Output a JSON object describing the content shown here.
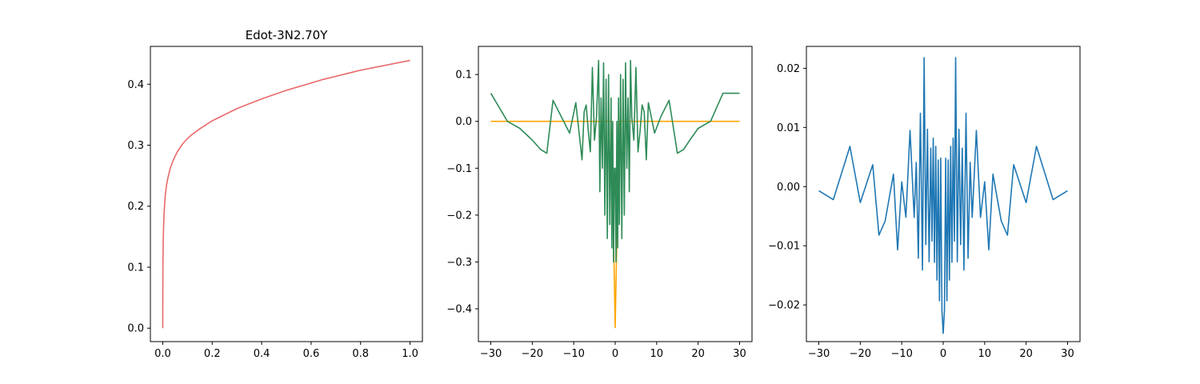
{
  "figure": {
    "background": "#ffffff"
  },
  "chart_data": [
    {
      "type": "line",
      "title": "Edot-3N2.70Y",
      "xlabel": "",
      "ylabel": "",
      "xlim": [
        -0.05,
        1.05
      ],
      "ylim": [
        -0.022,
        0.462
      ],
      "x_ticks": [
        0.0,
        0.2,
        0.4,
        0.6,
        0.8,
        1.0
      ],
      "x_tick_labels": [
        "0.0",
        "0.2",
        "0.4",
        "0.6",
        "0.8",
        "1.0"
      ],
      "y_ticks": [
        0.0,
        0.1,
        0.2,
        0.3,
        0.4
      ],
      "y_tick_labels": [
        "0.0",
        "0.1",
        "0.2",
        "0.3",
        "0.4"
      ],
      "grid": false,
      "series": [
        {
          "color": "#e8696b",
          "x": [
            0,
            0.0005,
            0.001,
            0.002,
            0.003,
            0.005,
            0.0075,
            0.01,
            0.015,
            0.02,
            0.03,
            0.04,
            0.05,
            0.06,
            0.08,
            0.1,
            0.12,
            0.15,
            0.2,
            0.25,
            0.3,
            0.35,
            0.4,
            0.45,
            0.5,
            0.55,
            0.6,
            0.65,
            0.7,
            0.75,
            0.8,
            0.85,
            0.9,
            0.95,
            1.0
          ],
          "y": [
            0,
            0.092,
            0.115,
            0.143,
            0.161,
            0.185,
            0.203,
            0.217,
            0.234,
            0.245,
            0.262,
            0.273,
            0.282,
            0.29,
            0.302,
            0.311,
            0.318,
            0.327,
            0.34,
            0.35,
            0.36,
            0.368,
            0.376,
            0.383,
            0.39,
            0.396,
            0.402,
            0.408,
            0.413,
            0.418,
            0.423,
            0.427,
            0.431,
            0.435,
            0.439
          ]
        }
      ]
    },
    {
      "type": "line",
      "title": "",
      "xlabel": "",
      "ylabel": "",
      "xlim": [
        -33,
        33
      ],
      "ylim": [
        -0.47,
        0.16
      ],
      "x_ticks": [
        -30,
        -20,
        -10,
        0,
        10,
        20,
        30
      ],
      "x_tick_labels": [
        "−30",
        "−20",
        "−10",
        "0",
        "10",
        "20",
        "30"
      ],
      "y_ticks": [
        0.1,
        0.0,
        -0.1,
        -0.2,
        -0.3,
        -0.4
      ],
      "y_tick_labels": [
        "0.1",
        "0.0",
        "−0.1",
        "−0.2",
        "−0.3",
        "−0.4"
      ],
      "grid": false,
      "series": [
        {
          "color": "#ffa500",
          "x": [
            -30,
            -1,
            -0.3,
            0,
            0.3,
            1,
            30
          ],
          "y": [
            0,
            0,
            -0.295,
            -0.44,
            -0.295,
            0,
            0
          ]
        },
        {
          "color": "#2e8b57",
          "x": [
            -30,
            -26,
            -23,
            -20,
            -18,
            -16.5,
            -15,
            -13,
            -11,
            -9.5,
            -8,
            -7.5,
            -7,
            -6.5,
            -6,
            -5.5,
            -5,
            -4.5,
            -4,
            -3.7,
            -3.4,
            -3.1,
            -2.8,
            -2.5,
            -2.2,
            -1.9,
            -1.6,
            -1.3,
            -1.0,
            -0.8,
            -0.6,
            -0.4,
            -0.2,
            0,
            0.2,
            0.4,
            0.6,
            0.8,
            1.0,
            1.3,
            1.6,
            1.9,
            2.2,
            2.5,
            2.8,
            3.1,
            3.4,
            3.7,
            4,
            4.5,
            5,
            5.5,
            6,
            6.5,
            7,
            7.5,
            8,
            9.5,
            11,
            13,
            15,
            16.5,
            18,
            20,
            23,
            26,
            30
          ],
          "y": [
            0.06,
            0.0,
            -0.015,
            -0.04,
            -0.06,
            -0.068,
            0.045,
            0.01,
            -0.025,
            0.04,
            -0.082,
            0.02,
            0.035,
            -0.02,
            -0.065,
            0.115,
            -0.04,
            0.01,
            0.13,
            -0.15,
            0.05,
            -0.1,
            0.125,
            -0.2,
            0.09,
            -0.25,
            0.1,
            -0.22,
            0.05,
            -0.27,
            0.0,
            -0.3,
            -0.1,
            -0.1,
            -0.3,
            0.0,
            -0.27,
            0.05,
            -0.22,
            0.1,
            -0.25,
            0.09,
            -0.2,
            0.125,
            -0.1,
            0.05,
            -0.15,
            0.13,
            0.01,
            -0.04,
            0.115,
            -0.065,
            -0.02,
            0.035,
            0.02,
            -0.082,
            0.04,
            -0.025,
            0.01,
            0.045,
            -0.068,
            -0.06,
            -0.04,
            -0.015,
            0.0,
            0.06,
            0.06
          ]
        }
      ]
    },
    {
      "type": "line",
      "title": "",
      "xlabel": "",
      "ylabel": "",
      "xlim": [
        -33,
        33
      ],
      "ylim": [
        -0.0262,
        0.0237
      ],
      "x_ticks": [
        -30,
        -20,
        -10,
        0,
        10,
        20,
        30
      ],
      "x_tick_labels": [
        "−30",
        "−20",
        "−10",
        "0",
        "10",
        "20",
        "30"
      ],
      "y_ticks": [
        0.02,
        0.01,
        0.0,
        -0.01,
        -0.02
      ],
      "y_tick_labels": [
        "0.02",
        "0.01",
        "0.00",
        "−0.01",
        "−0.02"
      ],
      "grid": false,
      "series": [
        {
          "color": "#1f77b4",
          "x": [
            -30,
            -26.5,
            -22.5,
            -20,
            -17,
            -15.5,
            -14,
            -12,
            -11,
            -10,
            -9,
            -8,
            -7,
            -6.5,
            -6,
            -5.5,
            -5,
            -4.6,
            -4.2,
            -3.8,
            -3.4,
            -3.0,
            -2.7,
            -2.4,
            -2.1,
            -1.8,
            -1.5,
            -1.2,
            -0.9,
            -0.6,
            -0.3,
            0,
            0.3,
            0.6,
            0.9,
            1.2,
            1.5,
            1.8,
            2.1,
            2.4,
            2.7,
            3.0,
            3.4,
            3.8,
            4.2,
            4.6,
            5,
            5.5,
            6,
            6.5,
            7,
            8,
            9,
            10,
            11,
            12,
            14,
            15.5,
            17,
            20,
            22.5,
            26.5,
            30
          ],
          "y": [
            -0.0007,
            -0.0022,
            0.0068,
            -0.0027,
            0.0037,
            -0.0082,
            -0.0058,
            0.0021,
            -0.0107,
            0.0008,
            -0.0052,
            0.0095,
            -0.0052,
            0.0041,
            -0.0121,
            0.0124,
            -0.0141,
            0.0218,
            -0.0098,
            0.0097,
            -0.0127,
            0.0065,
            -0.0092,
            0.0082,
            -0.0128,
            0.0068,
            -0.0158,
            0.0045,
            -0.0193,
            0.0048,
            -0.021,
            -0.0248,
            -0.021,
            0.0048,
            -0.0193,
            0.0045,
            -0.0158,
            0.0068,
            -0.0128,
            0.0082,
            -0.0092,
            0.0218,
            -0.0127,
            0.0097,
            -0.0098,
            0.0065,
            -0.0141,
            0.0124,
            -0.0121,
            0.0041,
            -0.0052,
            0.0095,
            -0.0052,
            0.0008,
            -0.0107,
            0.0021,
            -0.0058,
            -0.0082,
            0.0037,
            -0.0027,
            0.0068,
            -0.0022,
            -0.0007
          ]
        }
      ]
    }
  ]
}
